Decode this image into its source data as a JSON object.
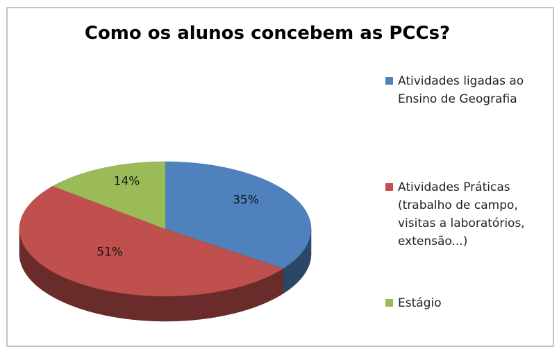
{
  "chart_data": {
    "type": "pie",
    "title": "Como os alunos concebem as PCCs?",
    "categories": [
      "Atividades ligadas ao Ensino de Geografia",
      "Atividades Práticas (trabalho de campo, visitas a laboratórios, extensão...)",
      "Estágio"
    ],
    "values": [
      35,
      51,
      14
    ],
    "value_labels": [
      "35%",
      "51%",
      "14%"
    ],
    "colors": [
      "#4f81bd",
      "#c0504d",
      "#9bbb59"
    ],
    "legend": "right"
  }
}
